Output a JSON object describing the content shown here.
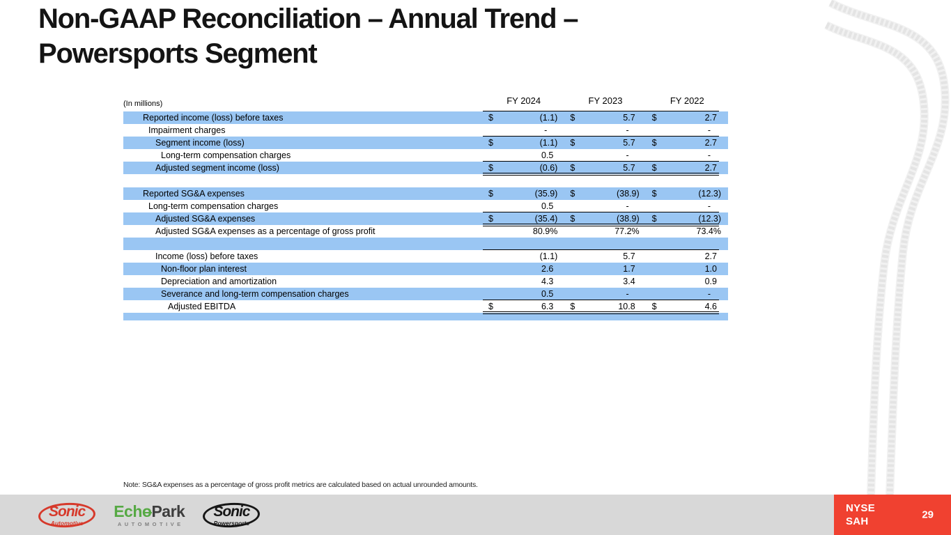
{
  "title": {
    "line1": "Non-GAAP Reconciliation – Annual Trend –",
    "line2": "Powersports Segment"
  },
  "table": {
    "units_label": "(In millions)",
    "currency_symbol": "$",
    "columns": [
      "FY 2024",
      "FY 2023",
      "FY 2022"
    ],
    "rows": [
      {
        "label": "Reported income (loss) before taxes",
        "indent": 1,
        "shaded": true,
        "dollar": true,
        "values": [
          "(1.1)",
          "5.7",
          "2.7"
        ]
      },
      {
        "label": "Impairment charges",
        "indent": 2,
        "shaded": false,
        "dollar": false,
        "values": [
          "-",
          "-",
          "-"
        ],
        "border": "single"
      },
      {
        "label": "Segment income (loss)",
        "indent": 3,
        "shaded": true,
        "dollar": true,
        "values": [
          "(1.1)",
          "5.7",
          "2.7"
        ]
      },
      {
        "label": "Long-term compensation charges",
        "indent": 4,
        "shaded": false,
        "dollar": false,
        "values": [
          "0.5",
          "-",
          "-"
        ],
        "border": "single"
      },
      {
        "label": "Adjusted segment income (loss)",
        "indent": 3,
        "shaded": true,
        "dollar": true,
        "values": [
          "(0.6)",
          "5.7",
          "2.7"
        ],
        "border": "double"
      },
      {
        "spacer": 19,
        "shaded": false
      },
      {
        "label": "Reported SG&A expenses",
        "indent": 1,
        "shaded": true,
        "dollar": true,
        "values": [
          "(35.9)",
          "(38.9)",
          "(12.3)"
        ]
      },
      {
        "label": "Long-term compensation charges",
        "indent": 2,
        "shaded": false,
        "dollar": false,
        "values": [
          "0.5",
          "-",
          "-"
        ],
        "border": "single"
      },
      {
        "label": "Adjusted SG&A expenses",
        "indent": 3,
        "shaded": true,
        "dollar": true,
        "values": [
          "(35.4)",
          "(38.9)",
          "(12.3)"
        ],
        "border": "double"
      },
      {
        "label": "Adjusted SG&A expenses as a percentage of gross profit",
        "indent": 3,
        "shaded": false,
        "dollar": false,
        "values": [
          "80.9%",
          "77.2%",
          "73.4%"
        ]
      },
      {
        "spacer": 18,
        "shaded": true,
        "border": "single"
      },
      {
        "label": "Income (loss) before taxes",
        "indent": 3,
        "shaded": false,
        "dollar": false,
        "values": [
          "(1.1)",
          "5.7",
          "2.7"
        ]
      },
      {
        "label": "Non-floor plan interest",
        "indent": 4,
        "shaded": true,
        "dollar": false,
        "values": [
          "2.6",
          "1.7",
          "1.0"
        ]
      },
      {
        "label": "Depreciation and amortization",
        "indent": 4,
        "shaded": false,
        "dollar": false,
        "values": [
          "4.3",
          "3.4",
          "0.9"
        ]
      },
      {
        "label": "Severance and long-term compensation charges",
        "indent": 4,
        "shaded": true,
        "dollar": false,
        "values": [
          "0.5",
          "-",
          "-"
        ],
        "border": "single"
      },
      {
        "label": "Adjusted EBITDA",
        "indent": 5,
        "shaded": false,
        "dollar": true,
        "values": [
          "6.3",
          "10.8",
          "4.6"
        ],
        "border": "double"
      },
      {
        "spacer": 11,
        "shaded": true
      }
    ]
  },
  "note": "Note: SG&A expenses as a percentage of gross profit metrics are calculated based on actual unrounded amounts.",
  "footer": {
    "logos": [
      {
        "name": "Sonic Automotive",
        "word": "Sonic",
        "sub": "Automotive"
      },
      {
        "name": "EchoPark Automotive",
        "prefix": "Ech",
        "o": "o",
        "suffix": "Park",
        "sub": "AUTOMOTIVE"
      },
      {
        "name": "Sonic Powersports",
        "word": "Sonic",
        "sub": "Powersports"
      }
    ],
    "ticker": {
      "line1": "NYSE",
      "line2": "SAH"
    },
    "page_number": "29"
  },
  "colors": {
    "row_highlight_blue": "#9AC6F3",
    "ticker_red": "#F04130",
    "footer_gray": "#D8D8D8",
    "sonic_red": "#D6392B",
    "sonic_black": "#161616",
    "echopark_green": "#56A944",
    "title_black": "#141414"
  }
}
